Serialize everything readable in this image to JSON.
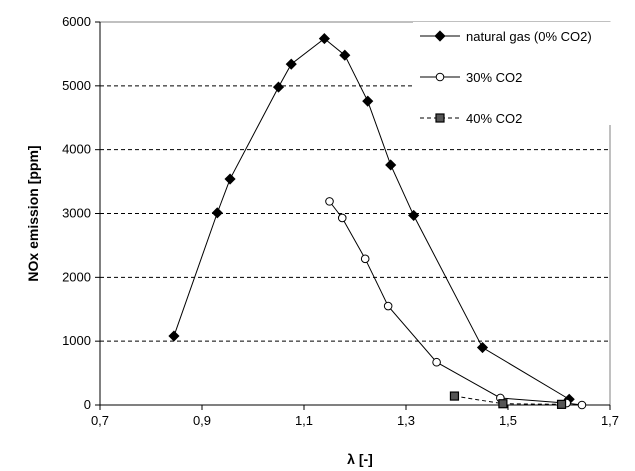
{
  "chart_data": {
    "type": "scatter",
    "xlabel": "λ  [-]",
    "ylabel": "NOx emission [ppm]",
    "xlim": [
      0.7,
      1.7
    ],
    "ylim": [
      0,
      6000
    ],
    "x_ticks": [
      "0,7",
      "0,9",
      "1,1",
      "1,3",
      "1,5",
      "1,7"
    ],
    "x_tick_values": [
      0.7,
      0.9,
      1.1,
      1.3,
      1.5,
      1.7
    ],
    "y_ticks": [
      "0",
      "1000",
      "2000",
      "3000",
      "4000",
      "5000",
      "6000"
    ],
    "y_tick_values": [
      0,
      1000,
      2000,
      3000,
      4000,
      5000,
      6000
    ],
    "grid": "horizontal dashed",
    "legend_position": "top-right",
    "series": [
      {
        "name": "natural gas (0% CO2)",
        "marker": "diamond-filled",
        "line": "solid",
        "x": [
          0.845,
          0.93,
          0.955,
          1.05,
          1.075,
          1.14,
          1.18,
          1.225,
          1.27,
          1.315,
          1.45,
          1.62
        ],
        "y": [
          1080,
          3010,
          3540,
          4980,
          5340,
          5740,
          5480,
          4760,
          3760,
          2970,
          900,
          90
        ]
      },
      {
        "name": "30% CO2",
        "marker": "circle-open",
        "line": "solid",
        "x": [
          1.15,
          1.175,
          1.22,
          1.265,
          1.36,
          1.485,
          1.615,
          1.645
        ],
        "y": [
          3190,
          2930,
          2290,
          1550,
          670,
          110,
          30,
          0
        ]
      },
      {
        "name": "40% CO2",
        "marker": "square-filled-gray",
        "line": "dashed",
        "x": [
          1.395,
          1.49,
          1.605
        ],
        "y": [
          140,
          20,
          10
        ]
      }
    ]
  }
}
